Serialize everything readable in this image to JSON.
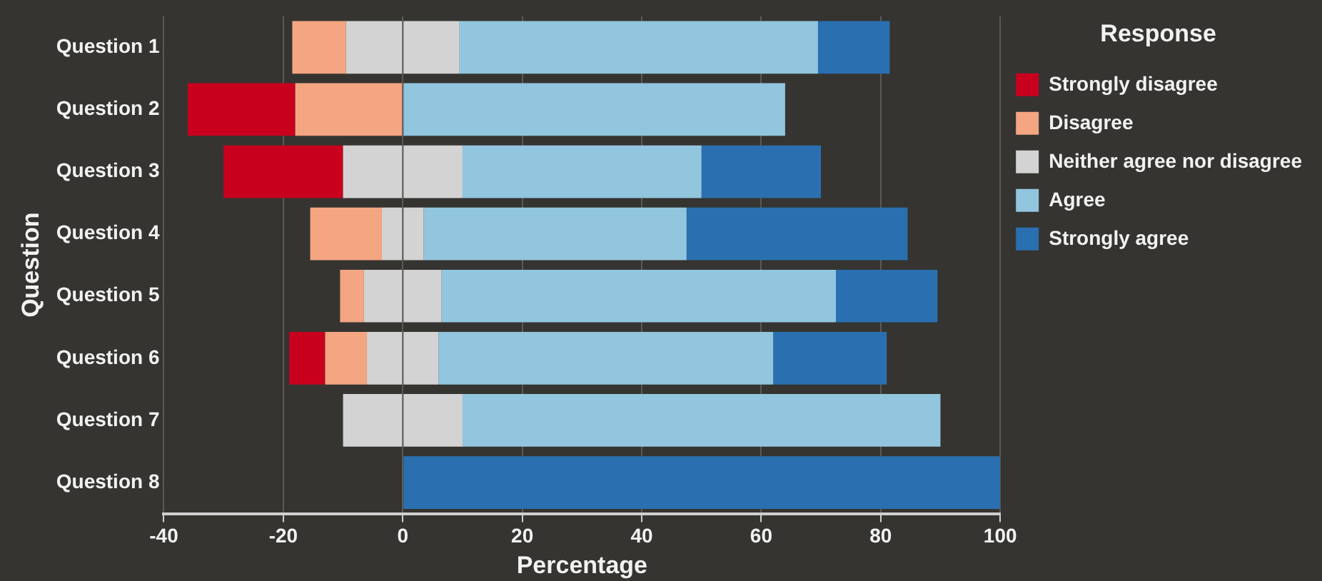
{
  "chart_data": {
    "type": "bar",
    "orientation": "horizontal",
    "stacked": true,
    "xlabel": "Percentage",
    "ylabel": "Question",
    "legend_title": "Response",
    "legend": "right",
    "grid": "x",
    "categories": [
      "Question 1",
      "Question 2",
      "Question 3",
      "Question 4",
      "Question 5",
      "Question 6",
      "Question 7",
      "Question 8"
    ],
    "xlim": [
      -40,
      100
    ],
    "xticks": [
      -40,
      -20,
      0,
      20,
      40,
      60,
      80,
      100
    ],
    "series": [
      {
        "color": "#d3d3d3",
        "values": [
          -9.5,
          0,
          -10,
          -3.5,
          -6.5,
          -6,
          -10,
          0
        ]
      },
      {
        "name": "Disagree",
        "color": "#f4a582",
        "values": [
          -9,
          -18,
          0,
          -12,
          -4,
          -7,
          0,
          0
        ]
      },
      {
        "name": "Strongly disagree",
        "color": "#c8001e",
        "values": [
          0,
          -18,
          -20,
          0,
          0,
          -6,
          0,
          0
        ]
      },
      {
        "name": "Neither agree nor disagree",
        "color": "#d3d3d3",
        "values": [
          9.5,
          0,
          10,
          3.5,
          6.5,
          6,
          10,
          0
        ]
      },
      {
        "name": "Agree",
        "color": "#92c5de",
        "values": [
          60,
          64,
          40,
          44,
          66,
          56,
          80,
          0
        ]
      },
      {
        "name": "Strongly agree",
        "color": "#2a70b0",
        "values": [
          12,
          0,
          20,
          37,
          17,
          19,
          0,
          100
        ]
      }
    ]
  }
}
